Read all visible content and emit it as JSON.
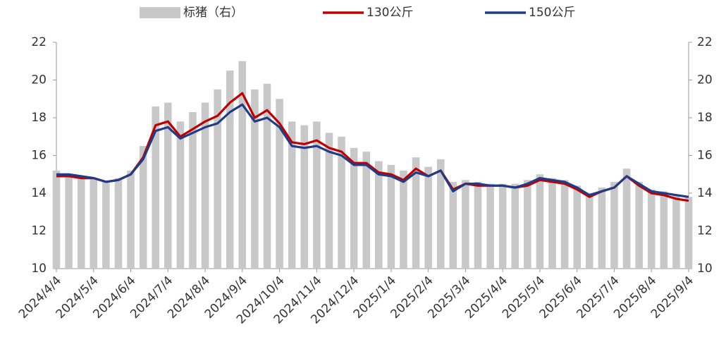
{
  "chart_data": {
    "type": "combo",
    "categories": [
      "2024/4/4",
      null,
      null,
      "2024/5/4",
      null,
      null,
      "2024/6/4",
      null,
      null,
      "2024/7/4",
      null,
      null,
      "2024/8/4",
      null,
      null,
      "2024/9/4",
      null,
      null,
      "2024/10/4",
      null,
      null,
      "2024/11/4",
      null,
      null,
      "2024/12/4",
      null,
      null,
      "2025/1/4",
      null,
      null,
      "2025/2/4",
      null,
      null,
      "2025/3/4",
      null,
      null,
      "2025/4/4",
      null,
      null,
      "2025/5/4",
      null,
      null,
      "2025/6/4",
      null,
      null,
      "2025/7/4",
      null,
      null,
      "2025/8/4",
      null,
      null,
      "2025/9/4"
    ],
    "series": [
      {
        "name": "标猪（右）",
        "type": "bar",
        "axis": "y2",
        "color": "#c8c8c8",
        "values": [
          15.2,
          15.0,
          14.9,
          14.8,
          14.6,
          14.8,
          15.2,
          16.5,
          18.6,
          18.8,
          17.8,
          18.3,
          18.8,
          19.5,
          20.5,
          21.0,
          19.5,
          19.8,
          19.0,
          17.8,
          17.6,
          17.8,
          17.2,
          17.0,
          16.4,
          16.2,
          15.7,
          15.5,
          15.2,
          15.9,
          15.4,
          15.8,
          14.6,
          14.7,
          14.6,
          14.5,
          14.5,
          14.5,
          14.7,
          15.0,
          14.8,
          14.7,
          14.4,
          14.0,
          14.3,
          14.6,
          15.3,
          14.6,
          14.2,
          14.1,
          13.9,
          13.8
        ]
      },
      {
        "name": "130公斤",
        "type": "line",
        "color": "#c00000",
        "values": [
          14.9,
          14.9,
          14.8,
          14.8,
          14.6,
          14.7,
          15.0,
          15.9,
          17.6,
          17.8,
          17.0,
          17.4,
          17.8,
          18.1,
          18.8,
          19.3,
          18.0,
          18.4,
          17.7,
          16.7,
          16.6,
          16.8,
          16.4,
          16.2,
          15.6,
          15.6,
          15.1,
          15.0,
          14.7,
          15.3,
          14.9,
          15.2,
          14.2,
          14.5,
          14.4,
          14.4,
          14.4,
          14.3,
          14.4,
          14.7,
          14.6,
          14.5,
          14.2,
          13.8,
          14.1,
          14.3,
          14.9,
          14.4,
          14.0,
          13.9,
          13.7,
          13.6
        ]
      },
      {
        "name": "150公斤",
        "type": "line",
        "color": "#1f3c88",
        "values": [
          15.0,
          15.0,
          14.9,
          14.8,
          14.6,
          14.7,
          15.0,
          15.8,
          17.3,
          17.5,
          16.9,
          17.2,
          17.5,
          17.7,
          18.3,
          18.7,
          17.8,
          18.0,
          17.5,
          16.5,
          16.4,
          16.5,
          16.2,
          16.0,
          15.5,
          15.5,
          15.0,
          14.9,
          14.6,
          15.1,
          14.9,
          15.2,
          14.1,
          14.5,
          14.5,
          14.4,
          14.4,
          14.3,
          14.5,
          14.8,
          14.7,
          14.6,
          14.3,
          13.9,
          14.1,
          14.3,
          14.9,
          14.5,
          14.1,
          14.0,
          13.9,
          13.8
        ]
      }
    ],
    "ylim": [
      10,
      22
    ],
    "yticks": [
      10,
      12,
      14,
      16,
      18,
      20,
      22
    ],
    "y2lim": [
      10,
      22
    ],
    "y2ticks": [
      10,
      12,
      14,
      16,
      18,
      20,
      22
    ]
  }
}
